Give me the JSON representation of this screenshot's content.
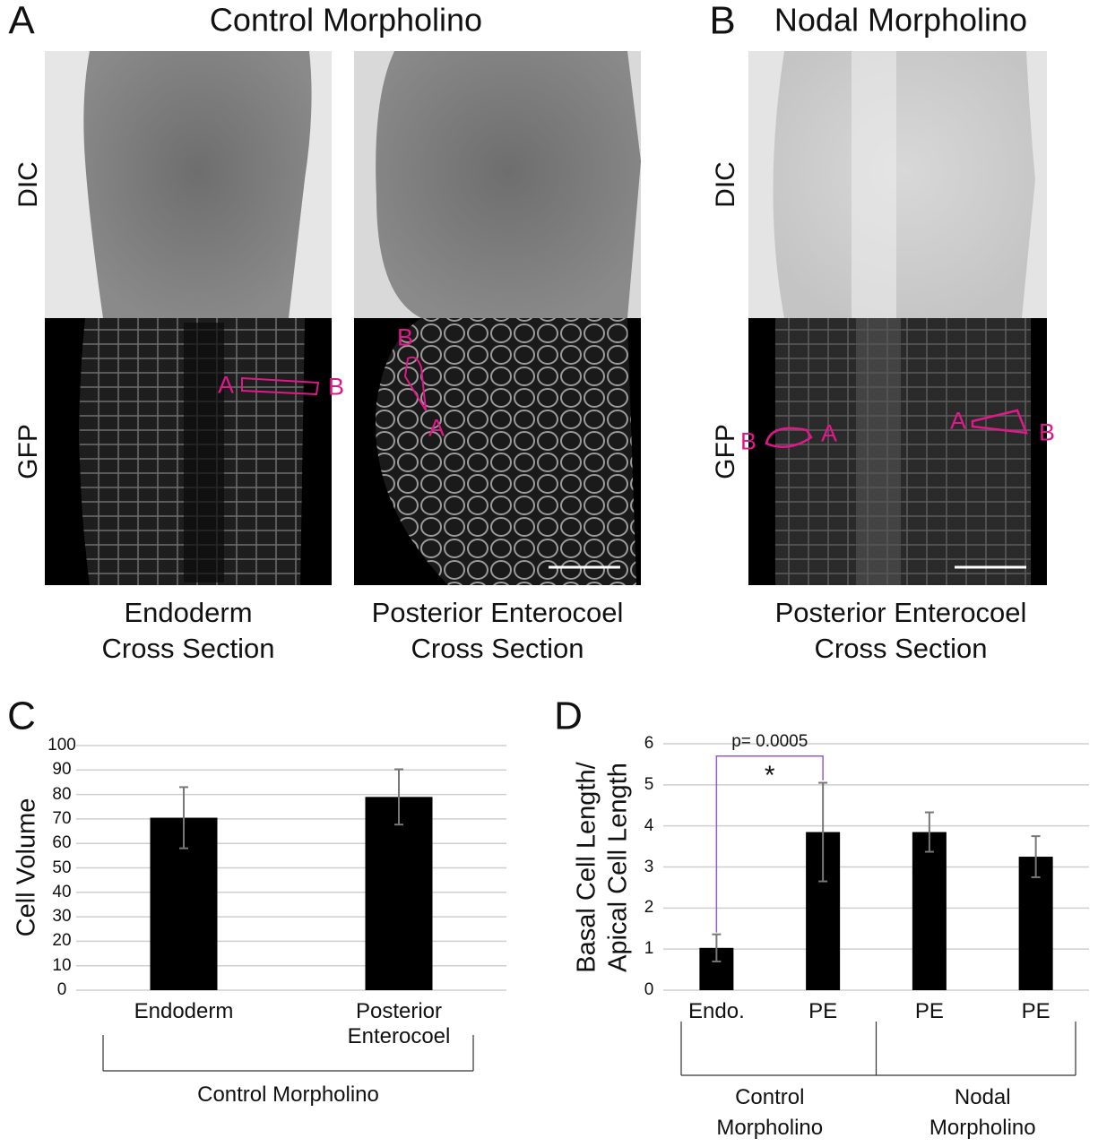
{
  "panels": {
    "A": {
      "letter": "A",
      "title": "Control Morpholino",
      "row_labels": [
        "DIC",
        "GFP"
      ],
      "captions": [
        [
          "Endoderm",
          "Cross Section"
        ],
        [
          "Posterior Enterocoel",
          "Cross Section"
        ]
      ]
    },
    "B": {
      "letter": "B",
      "title": "Nodal Morpholino",
      "row_labels": [
        "DIC",
        "GFP"
      ],
      "captions": [
        [
          "Posterior Enterocoel",
          "Cross Section"
        ]
      ]
    }
  },
  "image_annotations": [
    "A",
    "B",
    "B",
    "A",
    "B",
    "A",
    "A",
    "B"
  ],
  "chart_data": [
    {
      "type": "bar",
      "letter": "C",
      "y_label": [
        "Cell Volume"
      ],
      "categories": [
        "Endoderm",
        "Posterior Enterocoel"
      ],
      "values": [
        70.5,
        79
      ],
      "errors": [
        12.5,
        11.3
      ],
      "color": "#000000",
      "ylim": [
        0,
        100
      ],
      "yticks": [
        0,
        10,
        20,
        30,
        40,
        50,
        60,
        70,
        80,
        90,
        100
      ],
      "grid": true,
      "group_labels": [
        "Control Morpholino"
      ]
    },
    {
      "type": "bar",
      "letter": "D",
      "y_label": [
        "Basal Cell Length/",
        "Apical Cell Length"
      ],
      "categories": [
        "Endo.",
        "PE",
        "PE",
        "PE"
      ],
      "values": [
        1.03,
        3.85,
        3.85,
        3.25
      ],
      "errors": [
        0.33,
        1.2,
        0.48,
        0.5
      ],
      "color": "#000000",
      "ylim": [
        0,
        6
      ],
      "yticks": [
        0,
        1,
        2,
        3,
        4,
        5,
        6
      ],
      "grid": true,
      "group_labels": [
        "Control Morpholino",
        "Nodal Morpholino"
      ],
      "annotation": {
        "text": "p= 0.0005",
        "mark": "*"
      }
    }
  ]
}
